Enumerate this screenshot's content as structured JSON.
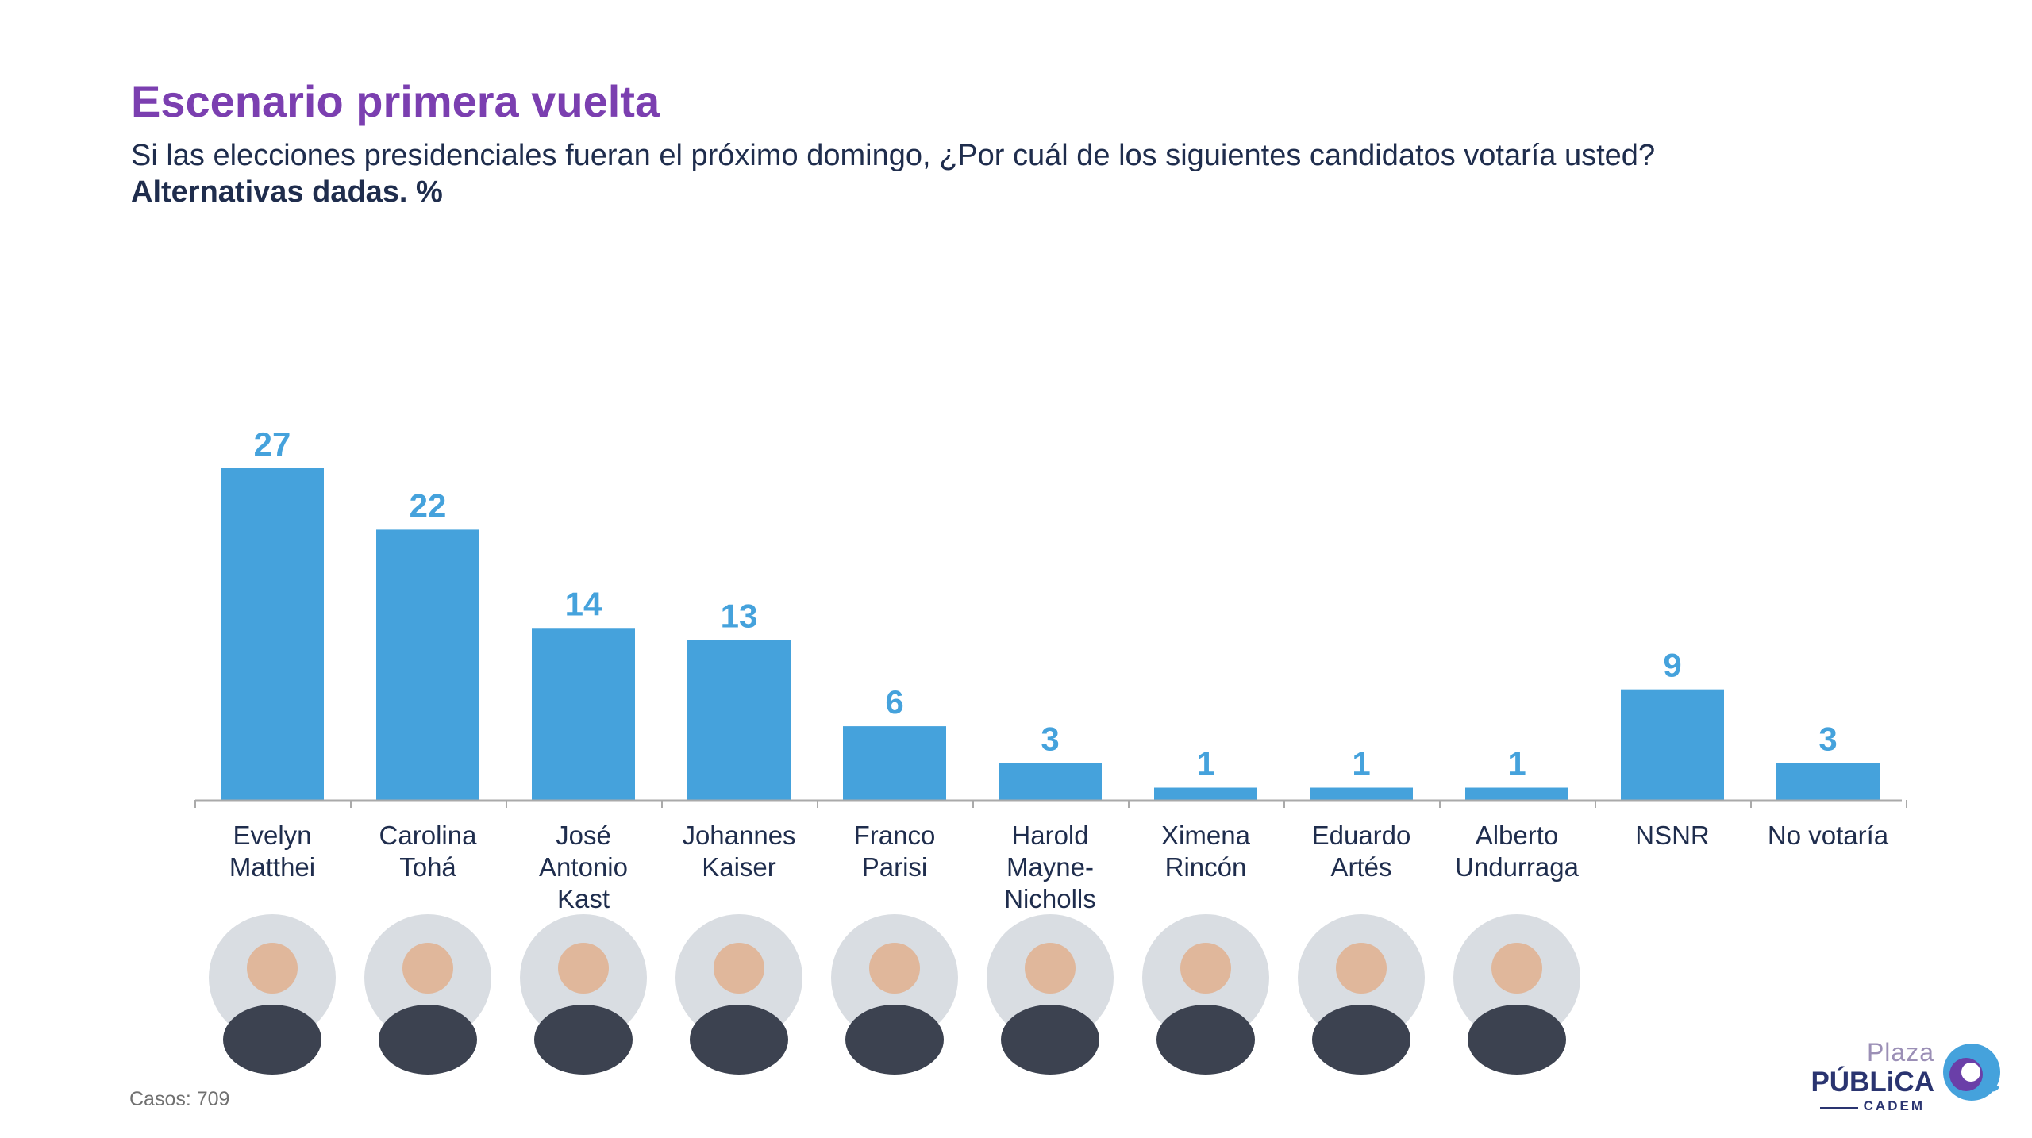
{
  "title": "Escenario primera vuelta",
  "subtitle": "Si las elecciones presidenciales fueran el próximo domingo, ¿Por cuál de los siguientes candidatos votaría usted?",
  "note": "Alternativas dadas. %",
  "footer": {
    "cases": "Casos: 709"
  },
  "logo": {
    "line1": "Plaza",
    "line2": "PÚBLiCA",
    "line3": "CADEM"
  },
  "colors": {
    "title": "#7b3fb0",
    "text": "#1f2d4d",
    "bar": "#45a2dc",
    "value_label": "#45a2dc",
    "axis": "#aaaaaa"
  },
  "chart_data": {
    "type": "bar",
    "title": "Escenario primera vuelta",
    "categories": [
      "Evelyn Matthei",
      "Carolina Tohá",
      "José Antonio Kast",
      "Johannes Kaiser",
      "Franco Parisi",
      "Harold Mayne-Nicholls",
      "Ximena Rincón",
      "Eduardo Artés",
      "Alberto Undurraga",
      "NSNR",
      "No votaría"
    ],
    "category_label_lines": [
      [
        "Evelyn",
        "Matthei"
      ],
      [
        "Carolina",
        "Tohá"
      ],
      [
        "José",
        "Antonio",
        "Kast"
      ],
      [
        "Johannes",
        "Kaiser"
      ],
      [
        "Franco",
        "Parisi"
      ],
      [
        "Harold",
        "Mayne-",
        "Nicholls"
      ],
      [
        "Ximena",
        "Rincón"
      ],
      [
        "Eduardo",
        "Artés"
      ],
      [
        "Alberto",
        "Undurraga"
      ],
      [
        "NSNR"
      ],
      [
        "No votaría"
      ]
    ],
    "values": [
      27,
      22,
      14,
      13,
      6,
      3,
      1,
      1,
      1,
      9,
      3
    ],
    "ylim": [
      0,
      27
    ],
    "data_labels": true,
    "grid": false,
    "legend": false,
    "photos": [
      true,
      true,
      true,
      true,
      true,
      true,
      true,
      true,
      true,
      false,
      false
    ]
  }
}
